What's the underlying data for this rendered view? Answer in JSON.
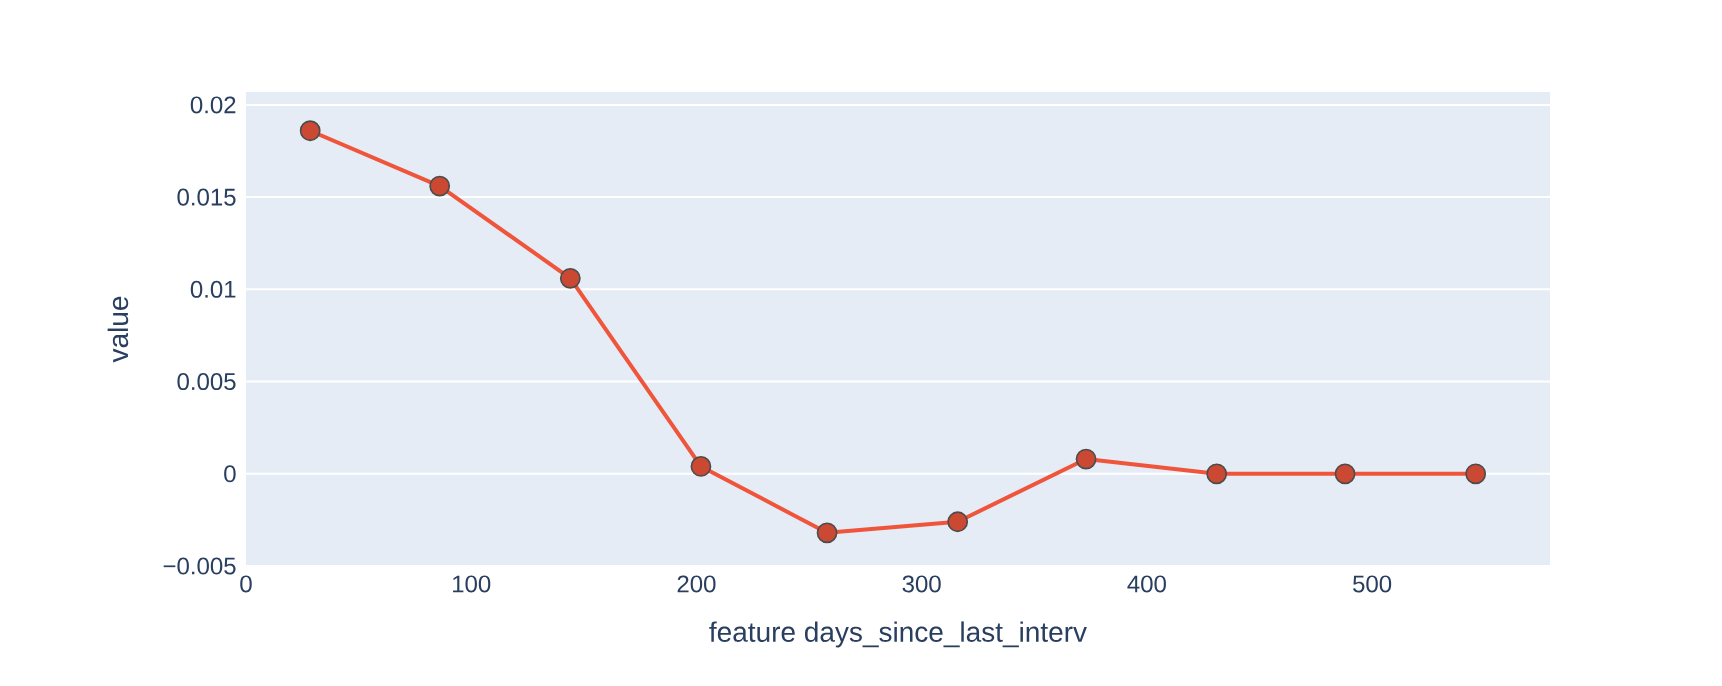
{
  "chart_data": {
    "type": "line",
    "xlabel": "feature days_since_last_interv",
    "ylabel": "value",
    "x": [
      28.5,
      86,
      144,
      202,
      258,
      316,
      373,
      431,
      488,
      546
    ],
    "series": [
      {
        "color": "#ef553b",
        "values": [
          0.0186,
          0.0156,
          0.0106,
          0.0004,
          -0.0032,
          -0.0026,
          0.0008,
          0,
          0,
          0
        ]
      }
    ],
    "xlim": [
      0,
      579
    ],
    "ylim": [
      -0.005,
      0.0207
    ],
    "xticks": [
      0,
      100,
      200,
      300,
      400,
      500
    ],
    "yticks": [
      {
        "value": -0.005,
        "label": "−0.005"
      },
      0,
      0.005,
      0.01,
      0.015,
      0.02
    ],
    "grid": "y",
    "marker": "circle",
    "line_style": "solid"
  }
}
